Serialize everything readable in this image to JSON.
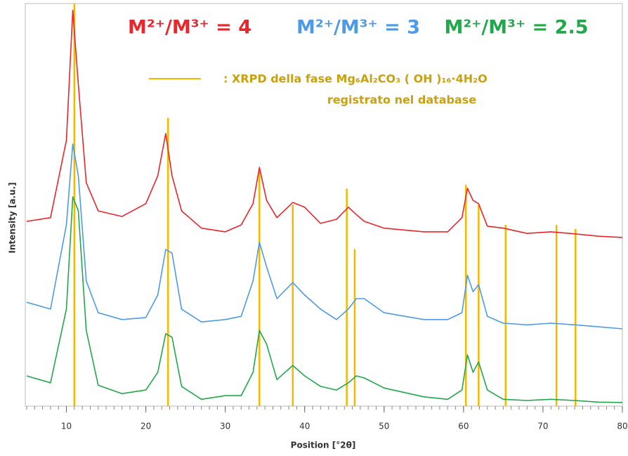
{
  "chart_data": {
    "type": "line",
    "x_label": "Position [°2θ]",
    "y_label": "Intensity [a.u.]",
    "xlim": [
      5,
      80
    ],
    "xticks": [
      10,
      20,
      30,
      40,
      50,
      60,
      70,
      80
    ],
    "xminor_step": 1,
    "ylim": [
      0,
      100
    ],
    "x": [
      5,
      8,
      10,
      10.8,
      11.5,
      12.5,
      14,
      17,
      20,
      21.5,
      22.5,
      23.3,
      24.5,
      27,
      30,
      32,
      33.5,
      34.3,
      35.2,
      36.5,
      38.5,
      40,
      42,
      44,
      45.5,
      46.5,
      47.5,
      50,
      55,
      58,
      59.8,
      60.5,
      61.2,
      61.9,
      63,
      65,
      68,
      71,
      74,
      77,
      80
    ],
    "series": [
      {
        "name": "M²⁺/M³⁺ = 4",
        "color": "#e8262c",
        "values": [
          45.9,
          46.8,
          66.0,
          98.3,
          79.9,
          55.5,
          48.5,
          47.1,
          50.3,
          57.2,
          67.7,
          57.2,
          48.5,
          44.2,
          43.3,
          45.0,
          50.3,
          59.3,
          51.1,
          46.8,
          50.6,
          49.4,
          45.4,
          46.4,
          49.4,
          47.6,
          45.9,
          44.2,
          43.3,
          43.3,
          46.8,
          54.1,
          51.1,
          50.3,
          44.7,
          44.2,
          42.9,
          43.3,
          42.8,
          42.2,
          41.9
        ]
      },
      {
        "name": "M²⁺/M³⁺ = 3",
        "color": "#4d9be6",
        "values": [
          25.8,
          24.1,
          45.0,
          65.1,
          57.2,
          31.1,
          23.2,
          21.5,
          22.0,
          27.6,
          38.9,
          38.0,
          24.1,
          20.9,
          21.5,
          22.3,
          31.1,
          40.7,
          34.6,
          26.7,
          30.7,
          27.6,
          24.1,
          21.5,
          24.1,
          26.7,
          26.7,
          23.2,
          21.5,
          21.5,
          23.2,
          32.5,
          28.4,
          30.2,
          22.3,
          20.6,
          20.2,
          20.6,
          20.2,
          19.7,
          19.2
        ]
      },
      {
        "name": "M²⁺/M³⁺ = 2.5",
        "color": "#22a84a",
        "values": [
          7.5,
          5.8,
          24.1,
          52.0,
          48.5,
          18.8,
          5.2,
          3.1,
          4.0,
          8.4,
          18.0,
          17.1,
          4.9,
          1.7,
          2.6,
          2.6,
          8.4,
          18.8,
          15.4,
          6.6,
          10.1,
          7.5,
          4.9,
          4.0,
          5.8,
          7.5,
          7.0,
          4.5,
          2.3,
          1.7,
          4.0,
          12.7,
          8.4,
          11.0,
          4.0,
          1.7,
          1.4,
          1.7,
          1.4,
          1.0,
          0.9
        ]
      }
    ],
    "reference": {
      "name": ": XRPD della fase Mg₆Al₂CO₃ ( OH )₁₆·4H₂O",
      "name_line2": "registrato nel database",
      "text_color": "#c9a010",
      "color": "#f5b800",
      "positions": [
        11.0,
        22.8,
        34.3,
        38.5,
        45.3,
        46.3,
        60.3,
        61.9,
        65.3,
        71.7,
        74.1
      ],
      "heights": [
        100,
        71.6,
        59,
        50,
        54,
        39,
        55,
        50,
        45,
        45,
        44
      ]
    }
  }
}
